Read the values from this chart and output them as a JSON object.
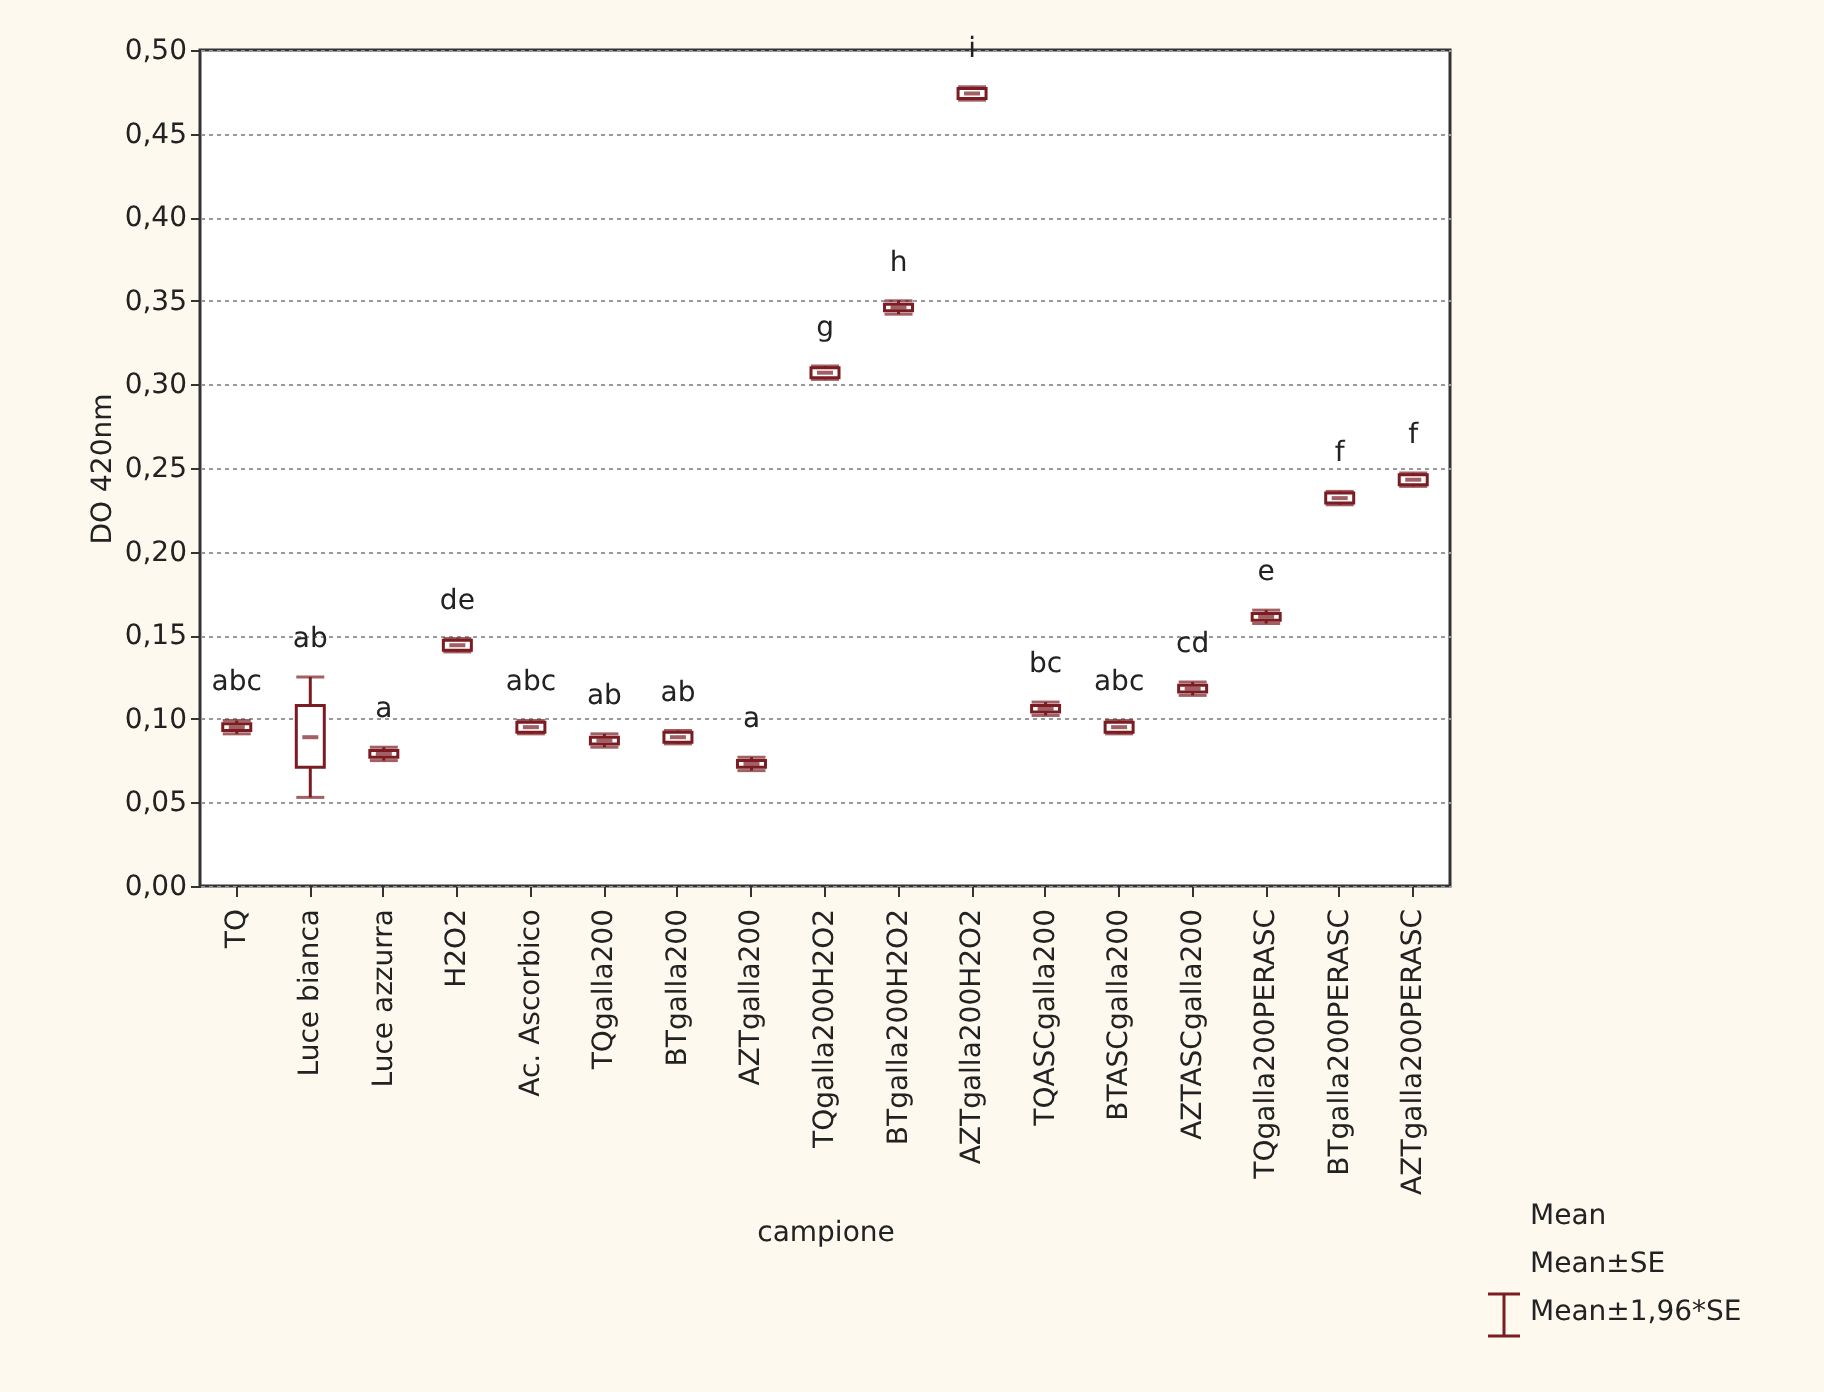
{
  "chart_data": {
    "type": "box",
    "xlabel": "campione",
    "ylabel": "DO 420nm",
    "color": "#7a1c22",
    "grid": "y",
    "categories": [
      "TQ",
      "Luce bianca",
      "Luce azzurra",
      "H2O2",
      "Ac. Ascorbico",
      "TQgalla200",
      "BTgalla200",
      "AZTgalla200",
      "TQgalla200H2O2",
      "BTgalla200H2O2",
      "AZTgalla200H2O2",
      "TQASCgalla200",
      "BTASCgalla200",
      "AZTASCgalla200",
      "TQgalla200PERASC",
      "BTgalla200PERASC",
      "AZTgalla200PERASC"
    ],
    "boxes": [
      {
        "low": 0.091,
        "q1": 0.093,
        "median": 0.095,
        "q3": 0.097,
        "high": 0.099
      },
      {
        "low": 0.053,
        "q1": 0.071,
        "median": 0.089,
        "q3": 0.108,
        "high": 0.125
      },
      {
        "low": 0.075,
        "q1": 0.077,
        "median": 0.079,
        "q3": 0.081,
        "high": 0.083
      },
      {
        "low": 0.14,
        "q1": 0.141,
        "median": 0.144,
        "q3": 0.147,
        "high": 0.148
      },
      {
        "low": 0.091,
        "q1": 0.092,
        "median": 0.095,
        "q3": 0.098,
        "high": 0.099
      },
      {
        "low": 0.083,
        "q1": 0.085,
        "median": 0.087,
        "q3": 0.089,
        "high": 0.091
      },
      {
        "low": 0.085,
        "q1": 0.086,
        "median": 0.089,
        "q3": 0.092,
        "high": 0.093
      },
      {
        "low": 0.069,
        "q1": 0.071,
        "median": 0.073,
        "q3": 0.075,
        "high": 0.077
      },
      {
        "low": 0.303,
        "q1": 0.304,
        "median": 0.307,
        "q3": 0.31,
        "high": 0.311
      },
      {
        "low": 0.342,
        "q1": 0.344,
        "median": 0.346,
        "q3": 0.348,
        "high": 0.35
      },
      {
        "low": 0.47,
        "q1": 0.471,
        "median": 0.474,
        "q3": 0.477,
        "high": 0.478
      },
      {
        "low": 0.102,
        "q1": 0.104,
        "median": 0.106,
        "q3": 0.108,
        "high": 0.11
      },
      {
        "low": 0.091,
        "q1": 0.092,
        "median": 0.095,
        "q3": 0.098,
        "high": 0.099
      },
      {
        "low": 0.114,
        "q1": 0.116,
        "median": 0.118,
        "q3": 0.12,
        "high": 0.122
      },
      {
        "low": 0.157,
        "q1": 0.159,
        "median": 0.161,
        "q3": 0.163,
        "high": 0.165
      },
      {
        "low": 0.228,
        "q1": 0.229,
        "median": 0.232,
        "q3": 0.235,
        "high": 0.236
      },
      {
        "low": 0.239,
        "q1": 0.24,
        "median": 0.243,
        "q3": 0.246,
        "high": 0.247
      }
    ],
    "ylim": [
      0,
      0.5
    ],
    "yticks": [
      {
        "value": 0,
        "label": "0,00"
      },
      {
        "value": 0.05,
        "label": "0,05"
      },
      {
        "value": 0.1,
        "label": "0,10"
      },
      {
        "value": 0.15,
        "label": "0,15"
      },
      {
        "value": 0.2,
        "label": "0,20"
      },
      {
        "value": 0.25,
        "label": "0,25"
      },
      {
        "value": 0.3,
        "label": "0,30"
      },
      {
        "value": 0.35,
        "label": "0,35"
      },
      {
        "value": 0.4,
        "label": "0,40"
      },
      {
        "value": 0.45,
        "label": "0,45"
      },
      {
        "value": 0.5,
        "label": "0,50"
      }
    ],
    "annotations": [
      "abc",
      "ab",
      "a",
      "de",
      "abc",
      "ab",
      "ab",
      "a",
      "g",
      "h",
      "i",
      "bc",
      "abc",
      "cd",
      "e",
      "f",
      "f",
      "Mean",
      "Mean±SE",
      "Mean±1,96*SE"
    ]
  }
}
